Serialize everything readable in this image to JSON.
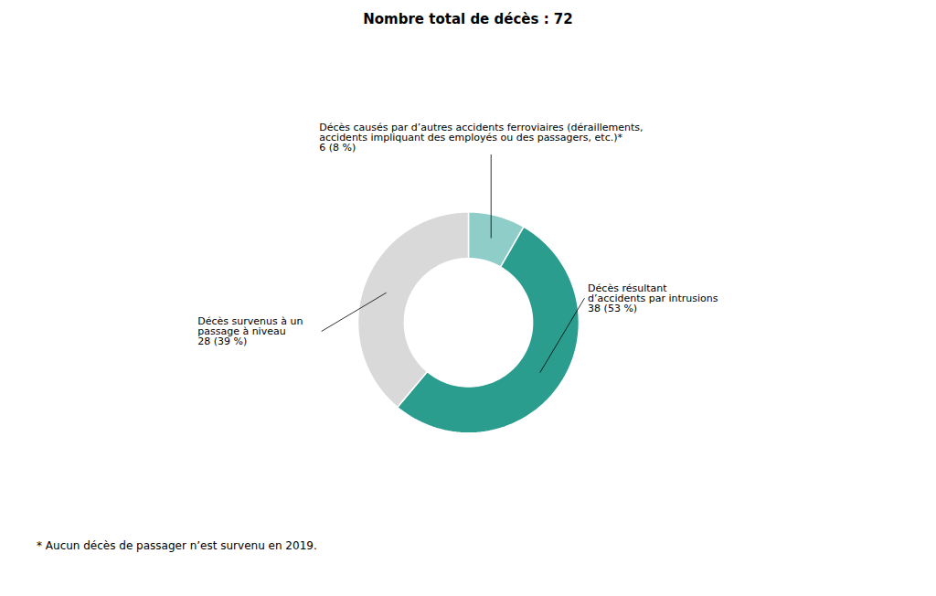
{
  "chart_data": {
    "type": "pie",
    "title": "Nombre total de décès : 72",
    "values": [
      6,
      38,
      28
    ],
    "colors": [
      "#8ecdc8",
      "#2a9d8f",
      "#d9d9d9"
    ],
    "annotations": [
      "Décès causés par d’autres accidents ferroviaires (déraillements,\naccidents impliquant des employés ou des passagers, etc.)*\n6 (8 %)",
      "Décès résultant\nd’accidents par intrusions\n38 (53 %)",
      "Décès survenus à un\npassage à niveau\n28 (39 %)"
    ],
    "caption": "* Aucun décès de passager n’est survenu en 2019."
  }
}
